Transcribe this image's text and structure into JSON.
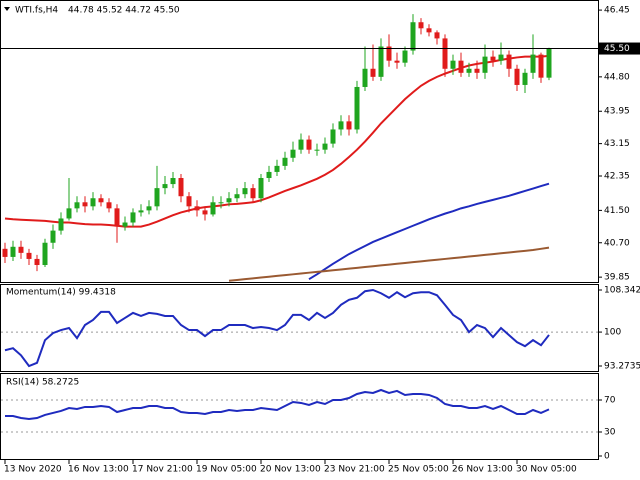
{
  "chart_data": [
    {
      "type": "candlestick",
      "title": "WTI.fs,H4",
      "subtitle": "44.78 45.52 44.72 45.50",
      "categories": [
        "13 Nov 2020",
        null,
        null,
        null,
        null,
        null,
        null,
        null,
        "16 Nov 13:00",
        null,
        null,
        null,
        null,
        null,
        null,
        null,
        "17 Nov 21:00",
        null,
        null,
        null,
        null,
        null,
        null,
        null,
        "19 Nov 05:00",
        null,
        null,
        null,
        null,
        null,
        null,
        null,
        "20 Nov 13:00",
        null,
        null,
        null,
        null,
        null,
        null,
        null,
        "23 Nov 21:00",
        null,
        null,
        null,
        null,
        null,
        null,
        null,
        "25 Nov 05:00",
        null,
        null,
        null,
        null,
        null,
        null,
        null,
        "26 Nov 13:00",
        null,
        null,
        null,
        null,
        null,
        null,
        null,
        "30 Nov 05:00",
        null,
        null,
        null,
        null
      ],
      "open": [
        40.55,
        40.35,
        40.6,
        40.45,
        40.3,
        40.15,
        40.7,
        41.0,
        41.3,
        41.55,
        41.7,
        41.6,
        41.8,
        41.7,
        41.55,
        41.1,
        41.2,
        41.45,
        41.5,
        41.6,
        42.05,
        42.15,
        42.3,
        41.85,
        41.6,
        41.5,
        41.4,
        41.7,
        41.7,
        41.8,
        41.9,
        42.05,
        41.8,
        42.3,
        42.45,
        42.6,
        42.8,
        43.0,
        43.25,
        43.0,
        43.0,
        43.15,
        43.5,
        43.7,
        43.5,
        44.55,
        45.0,
        44.8,
        45.55,
        45.2,
        45.15,
        45.45,
        46.15,
        46.0,
        45.9,
        45.75,
        45.0,
        45.2,
        44.9,
        45.0,
        44.9,
        45.3,
        45.2,
        45.35,
        45.0,
        44.6,
        44.9,
        45.35,
        44.78
      ],
      "high": [
        40.7,
        40.75,
        40.75,
        40.55,
        40.4,
        40.8,
        41.15,
        41.45,
        42.3,
        41.85,
        41.85,
        41.95,
        41.9,
        41.8,
        41.65,
        41.35,
        41.55,
        41.65,
        41.75,
        42.6,
        42.35,
        42.45,
        42.4,
        41.95,
        41.75,
        41.6,
        41.85,
        41.85,
        41.95,
        42.05,
        42.2,
        42.15,
        42.4,
        42.6,
        42.75,
        42.95,
        43.2,
        43.4,
        43.35,
        43.15,
        43.3,
        43.65,
        43.85,
        43.85,
        44.7,
        45.55,
        45.6,
        45.75,
        45.85,
        45.4,
        45.55,
        46.35,
        46.25,
        46.1,
        45.95,
        45.85,
        45.35,
        45.4,
        45.15,
        45.2,
        45.6,
        45.45,
        45.65,
        45.45,
        45.1,
        45.0,
        45.85,
        45.4,
        45.52
      ],
      "low": [
        40.2,
        40.25,
        40.3,
        40.15,
        40.0,
        40.1,
        40.55,
        40.9,
        41.25,
        41.45,
        41.45,
        41.5,
        41.6,
        41.45,
        40.7,
        41.0,
        41.1,
        41.35,
        41.4,
        41.5,
        41.9,
        42.05,
        41.7,
        41.45,
        41.35,
        41.25,
        41.35,
        41.55,
        41.6,
        41.7,
        41.8,
        41.7,
        41.7,
        42.2,
        42.35,
        42.5,
        42.7,
        42.9,
        42.9,
        42.85,
        42.9,
        43.05,
        43.35,
        43.35,
        43.4,
        44.45,
        44.7,
        44.7,
        45.05,
        45.0,
        45.05,
        45.35,
        45.85,
        45.8,
        45.6,
        44.8,
        44.85,
        44.8,
        44.8,
        44.75,
        44.75,
        45.05,
        45.1,
        44.8,
        44.45,
        44.4,
        44.75,
        44.65,
        44.72
      ],
      "close": [
        40.35,
        40.6,
        40.45,
        40.3,
        40.15,
        40.7,
        41.0,
        41.3,
        41.55,
        41.7,
        41.6,
        41.8,
        41.7,
        41.55,
        41.1,
        41.2,
        41.45,
        41.5,
        41.6,
        42.05,
        42.15,
        42.3,
        41.85,
        41.6,
        41.5,
        41.4,
        41.7,
        41.7,
        41.8,
        41.9,
        42.05,
        41.8,
        42.3,
        42.45,
        42.6,
        42.8,
        43.0,
        43.25,
        43.0,
        43.0,
        43.15,
        43.5,
        43.7,
        43.5,
        44.55,
        45.0,
        44.8,
        45.55,
        45.2,
        45.15,
        45.45,
        46.15,
        46.0,
        45.9,
        45.75,
        45.0,
        45.2,
        44.9,
        45.0,
        44.9,
        45.3,
        45.2,
        45.35,
        45.0,
        44.6,
        44.9,
        45.35,
        44.78,
        45.5
      ],
      "up_color": "#1fa51f",
      "down_color": "#e01b1b",
      "series": [
        {
          "color": "#e01b1b",
          "values": [
            41.3,
            41.28,
            41.27,
            41.26,
            41.25,
            41.24,
            41.22,
            41.2,
            41.2,
            41.18,
            41.16,
            41.15,
            41.15,
            41.14,
            41.12,
            41.1,
            41.1,
            41.1,
            41.15,
            41.22,
            41.3,
            41.38,
            41.45,
            41.5,
            41.55,
            41.58,
            41.6,
            41.62,
            41.65,
            41.66,
            41.68,
            41.7,
            41.75,
            41.82,
            41.9,
            41.98,
            42.05,
            42.12,
            42.2,
            42.28,
            42.38,
            42.5,
            42.65,
            42.82,
            43.0,
            43.2,
            43.42,
            43.65,
            43.85,
            44.05,
            44.25,
            44.42,
            44.58,
            44.7,
            44.8,
            44.88,
            44.95,
            45.02,
            45.08,
            45.12,
            45.15,
            45.18,
            45.22,
            45.25,
            45.28,
            45.3,
            45.3,
            45.3,
            45.32
          ]
        },
        {
          "color": "#1f2bbf",
          "values": [
            null,
            null,
            null,
            null,
            null,
            null,
            null,
            null,
            null,
            null,
            null,
            null,
            null,
            null,
            null,
            null,
            null,
            null,
            null,
            null,
            null,
            null,
            null,
            null,
            null,
            null,
            null,
            null,
            null,
            null,
            null,
            null,
            null,
            null,
            null,
            null,
            null,
            null,
            39.8,
            39.92,
            40.05,
            40.18,
            40.3,
            40.42,
            40.52,
            40.62,
            40.72,
            40.8,
            40.88,
            40.96,
            41.04,
            41.12,
            41.2,
            41.28,
            41.35,
            41.42,
            41.48,
            41.55,
            41.6,
            41.66,
            41.71,
            41.76,
            41.81,
            41.86,
            41.92,
            41.98,
            42.04,
            42.1,
            42.16
          ]
        },
        {
          "color": "#9a5a32",
          "values": [
            null,
            null,
            null,
            null,
            null,
            null,
            null,
            null,
            null,
            null,
            null,
            null,
            null,
            null,
            null,
            null,
            null,
            null,
            null,
            null,
            null,
            null,
            null,
            null,
            null,
            null,
            null,
            null,
            39.76,
            39.78,
            39.8,
            39.82,
            39.84,
            39.86,
            39.88,
            39.9,
            39.92,
            39.94,
            39.96,
            39.98,
            40.0,
            40.02,
            40.04,
            40.06,
            40.08,
            40.1,
            40.12,
            40.14,
            40.16,
            40.18,
            40.2,
            40.22,
            40.24,
            40.26,
            40.28,
            40.3,
            40.32,
            40.34,
            40.36,
            40.38,
            40.4,
            40.42,
            40.44,
            40.46,
            40.48,
            40.5,
            40.52,
            40.55,
            40.58
          ]
        }
      ],
      "price_line": {
        "value": 45.5,
        "label": "45.50"
      },
      "ylim": [
        39.73,
        46.65
      ],
      "yticks": [
        46.45,
        {
          "value": 44.8,
          "label": "44.80"
        },
        43.95,
        43.15,
        42.35,
        {
          "value": 41.5,
          "label": "41.50"
        },
        {
          "value": 40.7,
          "label": "40.70"
        },
        39.85
      ]
    },
    {
      "type": "line",
      "title": "Momentum(14) 99.4318",
      "color": "#1f2bbf",
      "values": [
        96.4,
        96.8,
        95.4,
        93.2735,
        93.9,
        98.4,
        99.8,
        100.4,
        100.8,
        98.8,
        101.4,
        102.4,
        104.0,
        104.0,
        101.8,
        102.8,
        103.8,
        103.2,
        103.8,
        103.6,
        103.2,
        103.2,
        101.4,
        100.4,
        100.4,
        99.2,
        100.4,
        100.4,
        101.4,
        101.4,
        101.4,
        100.8,
        101.0,
        100.8,
        100.4,
        101.4,
        103.4,
        103.4,
        102.4,
        103.8,
        102.8,
        103.8,
        105.4,
        106.4,
        106.8,
        108.1,
        108.3427,
        107.7,
        106.8,
        107.9,
        106.9,
        107.7,
        107.9,
        107.9,
        107.3,
        105.4,
        103.4,
        102.4,
        100.0,
        101.4,
        100.8,
        99.0,
        100.8,
        99.4,
        98.0,
        97.2,
        98.4,
        97.4,
        99.4318
      ],
      "ylim": [
        93.2735,
        108.3427
      ],
      "yticks": [
        108.3427,
        100,
        93.2735
      ],
      "levels": [
        100
      ]
    },
    {
      "type": "line",
      "title": "RSI(14) 58.2725",
      "color": "#1f2bbf",
      "values": [
        50,
        50,
        47.5,
        46.3,
        47.5,
        51.3,
        53.8,
        56.3,
        60,
        58.8,
        61.3,
        61.3,
        62.5,
        61.3,
        55,
        57.5,
        60,
        60,
        62.5,
        62.5,
        60,
        60,
        55,
        53.8,
        53.8,
        52.5,
        55,
        55,
        57.5,
        56.3,
        57.5,
        57.5,
        60,
        58.8,
        57.5,
        62.5,
        67.5,
        66.3,
        63.8,
        67.5,
        65,
        70,
        70,
        72.5,
        77.5,
        80,
        78.8,
        82.5,
        78.8,
        81.3,
        76.3,
        77.5,
        77.5,
        76.3,
        72.5,
        65,
        62.5,
        62.5,
        60,
        60,
        62.5,
        58.8,
        62.5,
        57.5,
        52.5,
        52.5,
        57.5,
        53.8,
        58.2725
      ],
      "ylim": [
        0,
        100
      ],
      "yticks": [
        70,
        30,
        0
      ],
      "levels": [
        70,
        30
      ]
    }
  ]
}
